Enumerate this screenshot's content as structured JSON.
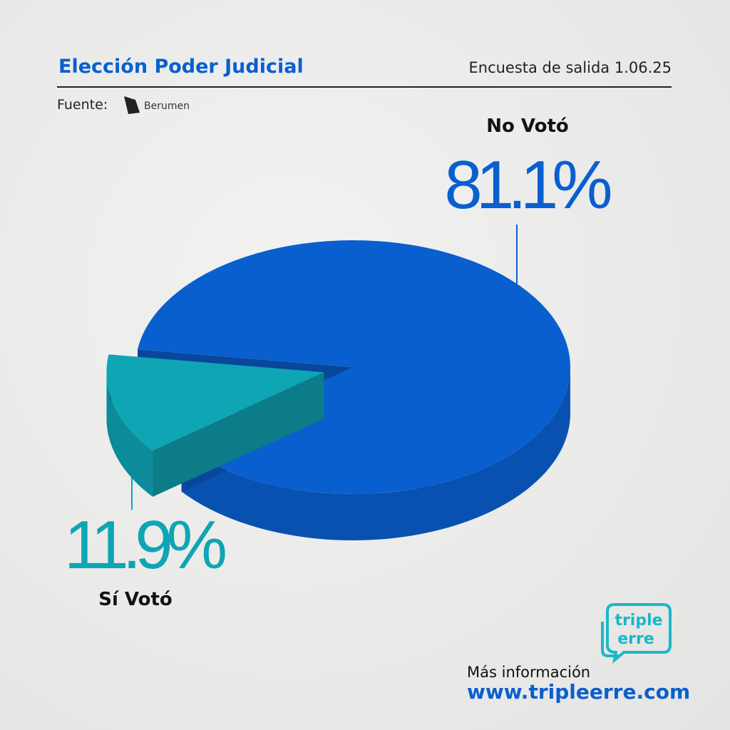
{
  "chart_data": {
    "type": "pie",
    "title": "Elección Poder Judicial",
    "subtitle": "Encuesta de salida 1.06.25",
    "source_label": "Fuente:",
    "source": "Berumen",
    "categories": [
      "No Votó",
      "Sí Votó"
    ],
    "values": [
      81.1,
      11.9
    ],
    "value_labels": [
      "81.1%",
      "11.9%"
    ],
    "colors": [
      "#0a5fcf",
      "#0ea5b5"
    ],
    "footer_label": "Más información",
    "footer_url": "www.tripleerre.com",
    "logo": [
      "triple",
      "erre"
    ]
  }
}
